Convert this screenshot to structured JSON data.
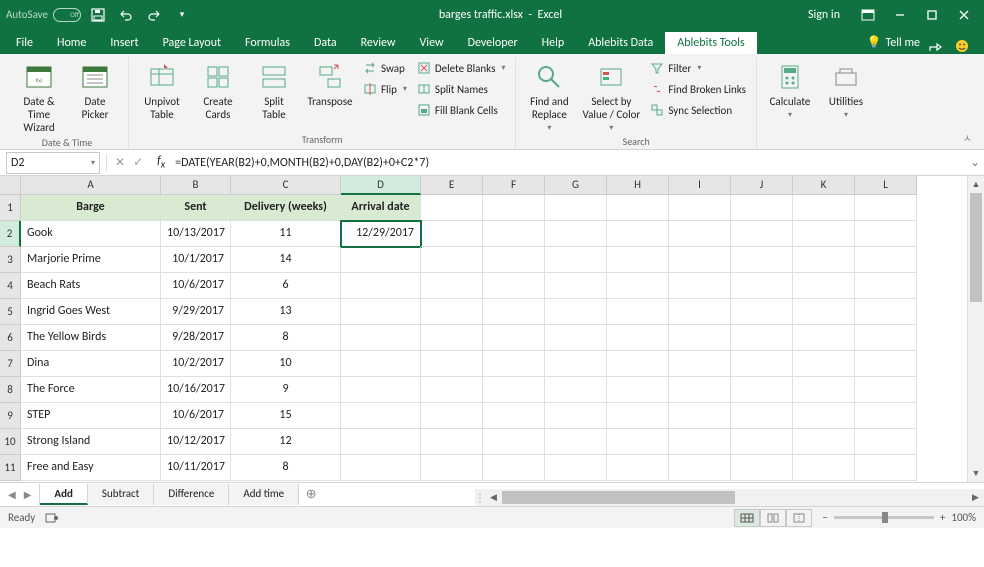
{
  "title": {
    "doc": "barges traffic.xlsx",
    "app": "Excel",
    "autosave": "AutoSave",
    "autosave_state": "Off",
    "sign_in": "Sign in"
  },
  "tabs": [
    "File",
    "Home",
    "Insert",
    "Page Layout",
    "Formulas",
    "Data",
    "Review",
    "View",
    "Developer",
    "Help",
    "Ablebits Data",
    "Ablebits Tools"
  ],
  "active_tab": 11,
  "tell_me": "Tell me",
  "ribbon": {
    "g1": {
      "label": "Date & Time",
      "b1": "Date &\nTime Wizard",
      "b2": "Date\nPicker"
    },
    "g2": {
      "label": "Transform",
      "b1": "Unpivot\nTable",
      "b2": "Create\nCards",
      "b3": "Split\nTable",
      "b4": "Transpose",
      "s1": "Swap",
      "s2": "Flip",
      "s3": "Delete Blanks",
      "s4": "Split Names",
      "s5": "Fill Blank Cells"
    },
    "g3": {
      "label": "Search",
      "b1": "Find and\nReplace",
      "b2": "Select by\nValue / Color",
      "s1": "Filter",
      "s2": "Find Broken Links",
      "s3": "Sync Selection"
    },
    "g4": {
      "b1": "Calculate",
      "b2": "Utilities"
    }
  },
  "fx": {
    "name": "D2",
    "formula": "=DATE(YEAR(B2)+0,MONTH(B2)+0,DAY(B2)+0+C2*7)"
  },
  "cols": {
    "letters": [
      "A",
      "B",
      "C",
      "D",
      "E",
      "F",
      "G",
      "H",
      "I",
      "J",
      "K",
      "L"
    ],
    "widths": [
      140,
      70,
      110,
      80,
      62,
      62,
      62,
      62,
      62,
      62,
      62,
      62
    ]
  },
  "selected_col": 3,
  "selected_row": 1,
  "headers": [
    "Barge",
    "Sent",
    "Delivery  (weeks)",
    "Arrival date"
  ],
  "rows": [
    {
      "a": "Gook",
      "b": "10/13/2017",
      "c": "11",
      "d": "12/29/2017"
    },
    {
      "a": "Marjorie Prime",
      "b": "10/1/2017",
      "c": "14",
      "d": ""
    },
    {
      "a": "Beach Rats",
      "b": "10/6/2017",
      "c": "6",
      "d": ""
    },
    {
      "a": "Ingrid Goes West",
      "b": "9/29/2017",
      "c": "13",
      "d": ""
    },
    {
      "a": "The Yellow Birds",
      "b": "9/28/2017",
      "c": "8",
      "d": ""
    },
    {
      "a": "Dina",
      "b": "10/2/2017",
      "c": "10",
      "d": ""
    },
    {
      "a": "The Force",
      "b": "10/16/2017",
      "c": "9",
      "d": ""
    },
    {
      "a": "STEP",
      "b": "10/6/2017",
      "c": "15",
      "d": ""
    },
    {
      "a": "Strong Island",
      "b": "10/12/2017",
      "c": "12",
      "d": ""
    },
    {
      "a": "Free and Easy",
      "b": "10/11/2017",
      "c": "8",
      "d": ""
    }
  ],
  "sheets": [
    "Add",
    "Subtract",
    "Difference",
    "Add time"
  ],
  "active_sheet": 0,
  "status": {
    "ready": "Ready",
    "zoom": "100%"
  },
  "colors": {
    "accent": "#0f7240",
    "header_fill": "#d9ead3"
  }
}
